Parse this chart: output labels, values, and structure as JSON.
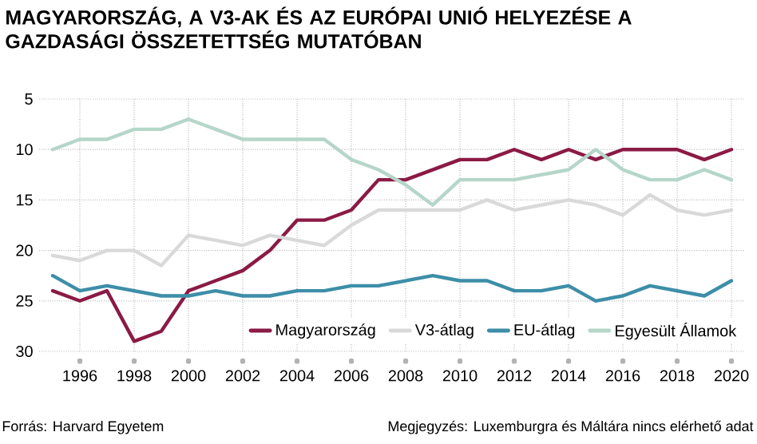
{
  "chart_data": {
    "type": "line",
    "title": "MAGYARORSZÁG, A V3-AK ÉS AZ EURÓPAI UNIÓ HELYEZÉSE A GAZDASÁGI ÖSSZETETTSÉG MUTATÓBAN",
    "x": [
      1995,
      1996,
      1997,
      1998,
      1999,
      2000,
      2001,
      2002,
      2003,
      2004,
      2005,
      2006,
      2007,
      2008,
      2009,
      2010,
      2011,
      2012,
      2013,
      2014,
      2015,
      2016,
      2017,
      2018,
      2019,
      2020
    ],
    "series": [
      {
        "name": "Magyarország",
        "color": "#8b1a45",
        "values": [
          24,
          25,
          24,
          29,
          28,
          24,
          23,
          22,
          20,
          17,
          17,
          16,
          13,
          13,
          12,
          11,
          11,
          10,
          11,
          10,
          11,
          10,
          10,
          10,
          11,
          10
        ]
      },
      {
        "name": "V3-átlag",
        "color": "#d9d9d9",
        "values": [
          20.5,
          21,
          20,
          20,
          21.5,
          18.5,
          19,
          19.5,
          18.5,
          19,
          19.5,
          17.5,
          16,
          16,
          16,
          16,
          15,
          16,
          15.5,
          15,
          15.5,
          16.5,
          14.5,
          16,
          16.5,
          16
        ]
      },
      {
        "name": "EU-átlag",
        "color": "#3d8ea8",
        "values": [
          22.5,
          24,
          23.5,
          24,
          24.5,
          24.5,
          24,
          24.5,
          24.5,
          24,
          24,
          23.5,
          23.5,
          23,
          22.5,
          23,
          23,
          24,
          24,
          23.5,
          25,
          24.5,
          23.5,
          24,
          24.5,
          23
        ]
      },
      {
        "name": "Egyesült Államok",
        "color": "#b5d6c9",
        "values": [
          10,
          9,
          9,
          8,
          8,
          7,
          8,
          9,
          9,
          9,
          9,
          11,
          12,
          13.5,
          15.5,
          13,
          13,
          13,
          12.5,
          12,
          10,
          12,
          13,
          13,
          12,
          13
        ]
      }
    ],
    "xlim": [
      1994.5,
      2020.5
    ],
    "ylim": [
      30,
      5
    ],
    "xticks": [
      1996,
      1998,
      2000,
      2002,
      2004,
      2006,
      2008,
      2010,
      2012,
      2014,
      2016,
      2018,
      2020
    ],
    "yticks": [
      5,
      10,
      15,
      20,
      25,
      30
    ],
    "grid": true,
    "legend": "bottom right",
    "marker": "none",
    "line_style": "solid",
    "annotations": [
      "Forrás: Harvard Egyetem",
      "Megjegyzés: Luxemburgra és Máltára nincs elérhető adat"
    ]
  }
}
